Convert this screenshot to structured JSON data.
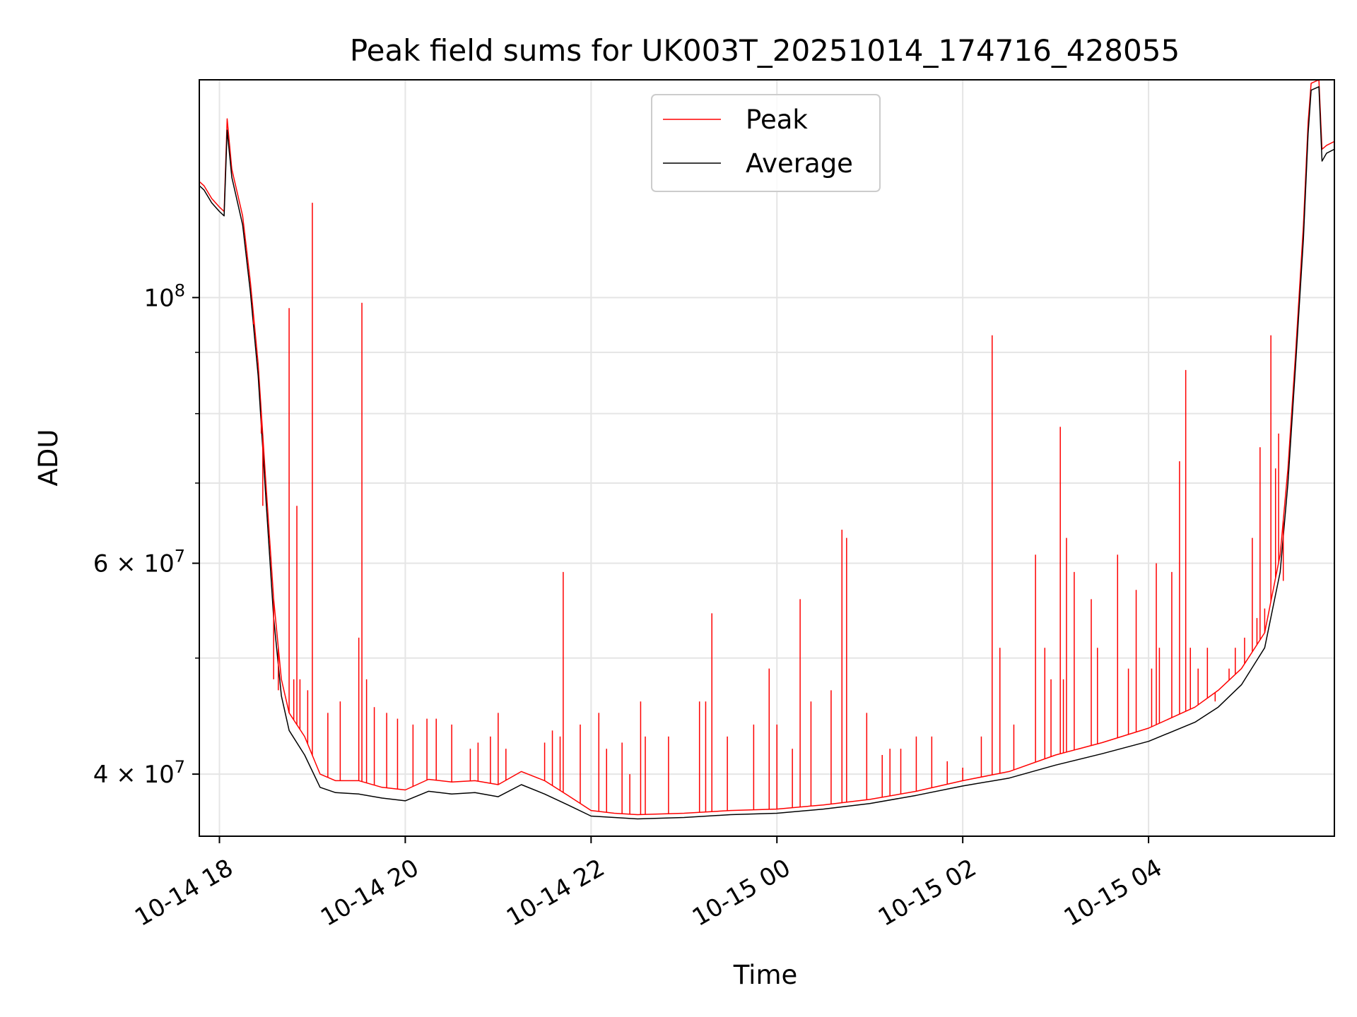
{
  "chart_data": {
    "type": "line",
    "title": "Peak field sums for UK003T_20251014_174716_428055",
    "xlabel": "Time",
    "ylabel": "ADU",
    "y_scale": "log",
    "grid": true,
    "legend_position": "top-center",
    "xlim": [
      "2025-10-14 17:47",
      "2025-10-15 06:00"
    ],
    "ylim": [
      35500000,
      152000000
    ],
    "x_ticks": [
      {
        "value": "2025-10-14 18:00",
        "label": "10-14 18"
      },
      {
        "value": "2025-10-14 20:00",
        "label": "10-14 20"
      },
      {
        "value": "2025-10-14 22:00",
        "label": "10-14 22"
      },
      {
        "value": "2025-10-15 00:00",
        "label": "10-15 00"
      },
      {
        "value": "2025-10-15 02:00",
        "label": "10-15 02"
      },
      {
        "value": "2025-10-15 04:00",
        "label": "10-15 04"
      }
    ],
    "y_ticks_major": [
      {
        "value": 100000000,
        "label_base": "10",
        "label_exp": "8"
      },
      {
        "value": 60000000,
        "label_base": "6 × 10",
        "label_exp": "7"
      },
      {
        "value": 40000000,
        "label_base": "4 × 10",
        "label_exp": "7"
      }
    ],
    "y_ticks_minor": [
      50000000,
      70000000,
      80000000,
      90000000
    ],
    "series": [
      {
        "name": "Peak",
        "color": "#ff0000",
        "points": [
          [
            "2025-10-14 17:47",
            125000000
          ],
          [
            "2025-10-14 17:50",
            124000000
          ],
          [
            "2025-10-14 17:55",
            121000000
          ],
          [
            "2025-10-14 18:00",
            119000000
          ],
          [
            "2025-10-14 18:03",
            118000000
          ],
          [
            "2025-10-14 18:05",
            141000000
          ],
          [
            "2025-10-14 18:08",
            128000000
          ],
          [
            "2025-10-14 18:15",
            117000000
          ],
          [
            "2025-10-14 18:20",
            103000000
          ],
          [
            "2025-10-14 18:25",
            88000000
          ],
          [
            "2025-10-14 18:30",
            70000000
          ],
          [
            "2025-10-14 18:35",
            56000000
          ],
          [
            "2025-10-14 18:40",
            48000000
          ],
          [
            "2025-10-14 18:45",
            45000000
          ],
          [
            "2025-10-14 18:55",
            43000000
          ],
          [
            "2025-10-14 19:05",
            40000000
          ],
          [
            "2025-10-14 19:15",
            39500000
          ],
          [
            "2025-10-14 19:30",
            39500000
          ],
          [
            "2025-10-14 19:45",
            39000000
          ],
          [
            "2025-10-14 20:00",
            38800000
          ],
          [
            "2025-10-14 20:15",
            39600000
          ],
          [
            "2025-10-14 20:30",
            39400000
          ],
          [
            "2025-10-14 20:45",
            39500000
          ],
          [
            "2025-10-14 21:00",
            39200000
          ],
          [
            "2025-10-14 21:15",
            40200000
          ],
          [
            "2025-10-14 21:30",
            39500000
          ],
          [
            "2025-10-14 21:45",
            38400000
          ],
          [
            "2025-10-14 22:00",
            37300000
          ],
          [
            "2025-10-14 22:15",
            37100000
          ],
          [
            "2025-10-14 22:30",
            37000000
          ],
          [
            "2025-10-14 23:00",
            37100000
          ],
          [
            "2025-10-14 23:30",
            37300000
          ],
          [
            "2025-10-15 00:00",
            37400000
          ],
          [
            "2025-10-15 00:30",
            37700000
          ],
          [
            "2025-10-15 01:00",
            38100000
          ],
          [
            "2025-10-15 01:30",
            38700000
          ],
          [
            "2025-10-15 02:00",
            39500000
          ],
          [
            "2025-10-15 02:30",
            40200000
          ],
          [
            "2025-10-15 03:00",
            41500000
          ],
          [
            "2025-10-15 03:30",
            42500000
          ],
          [
            "2025-10-15 04:00",
            43700000
          ],
          [
            "2025-10-15 04:30",
            45500000
          ],
          [
            "2025-10-15 04:45",
            47000000
          ],
          [
            "2025-10-15 05:00",
            49000000
          ],
          [
            "2025-10-15 05:15",
            52500000
          ],
          [
            "2025-10-15 05:25",
            61000000
          ],
          [
            "2025-10-15 05:30",
            72000000
          ],
          [
            "2025-10-15 05:35",
            90000000
          ],
          [
            "2025-10-15 05:40",
            115000000
          ],
          [
            "2025-10-15 05:43",
            140000000
          ],
          [
            "2025-10-15 05:45",
            151000000
          ],
          [
            "2025-10-15 05:50",
            152000000
          ],
          [
            "2025-10-15 05:52",
            133000000
          ],
          [
            "2025-10-15 05:55",
            134000000
          ],
          [
            "2025-10-15 06:00",
            135000000
          ]
        ]
      },
      {
        "name": "Average",
        "color": "#000000",
        "points": [
          [
            "2025-10-14 17:47",
            124000000
          ],
          [
            "2025-10-14 17:50",
            123000000
          ],
          [
            "2025-10-14 17:55",
            120000000
          ],
          [
            "2025-10-14 18:00",
            118000000
          ],
          [
            "2025-10-14 18:03",
            117000000
          ],
          [
            "2025-10-14 18:05",
            138000000
          ],
          [
            "2025-10-14 18:08",
            126000000
          ],
          [
            "2025-10-14 18:15",
            115000000
          ],
          [
            "2025-10-14 18:20",
            101000000
          ],
          [
            "2025-10-14 18:25",
            86000000
          ],
          [
            "2025-10-14 18:30",
            68000000
          ],
          [
            "2025-10-14 18:35",
            54000000
          ],
          [
            "2025-10-14 18:40",
            46500000
          ],
          [
            "2025-10-14 18:45",
            43500000
          ],
          [
            "2025-10-14 18:55",
            41500000
          ],
          [
            "2025-10-14 19:05",
            39000000
          ],
          [
            "2025-10-14 19:15",
            38600000
          ],
          [
            "2025-10-14 19:30",
            38500000
          ],
          [
            "2025-10-14 19:45",
            38200000
          ],
          [
            "2025-10-14 20:00",
            38000000
          ],
          [
            "2025-10-14 20:15",
            38700000
          ],
          [
            "2025-10-14 20:30",
            38500000
          ],
          [
            "2025-10-14 20:45",
            38600000
          ],
          [
            "2025-10-14 21:00",
            38300000
          ],
          [
            "2025-10-14 21:15",
            39200000
          ],
          [
            "2025-10-14 21:30",
            38500000
          ],
          [
            "2025-10-14 21:45",
            37700000
          ],
          [
            "2025-10-14 22:00",
            36900000
          ],
          [
            "2025-10-14 22:15",
            36800000
          ],
          [
            "2025-10-14 22:30",
            36700000
          ],
          [
            "2025-10-14 23:00",
            36800000
          ],
          [
            "2025-10-14 23:30",
            37000000
          ],
          [
            "2025-10-15 00:00",
            37100000
          ],
          [
            "2025-10-15 00:30",
            37400000
          ],
          [
            "2025-10-15 01:00",
            37800000
          ],
          [
            "2025-10-15 01:30",
            38400000
          ],
          [
            "2025-10-15 02:00",
            39100000
          ],
          [
            "2025-10-15 02:30",
            39700000
          ],
          [
            "2025-10-15 03:00",
            40700000
          ],
          [
            "2025-10-15 03:30",
            41600000
          ],
          [
            "2025-10-15 04:00",
            42600000
          ],
          [
            "2025-10-15 04:30",
            44200000
          ],
          [
            "2025-10-15 04:45",
            45500000
          ],
          [
            "2025-10-15 05:00",
            47500000
          ],
          [
            "2025-10-15 05:15",
            51000000
          ],
          [
            "2025-10-15 05:25",
            59000000
          ],
          [
            "2025-10-15 05:30",
            70000000
          ],
          [
            "2025-10-15 05:35",
            88000000
          ],
          [
            "2025-10-15 05:40",
            112000000
          ],
          [
            "2025-10-15 05:43",
            137000000
          ],
          [
            "2025-10-15 05:45",
            149000000
          ],
          [
            "2025-10-15 05:50",
            150000000
          ],
          [
            "2025-10-15 05:52",
            130000000
          ],
          [
            "2025-10-15 05:55",
            132000000
          ],
          [
            "2025-10-15 06:00",
            133000000
          ]
        ]
      }
    ],
    "peak_spikes": [
      [
        "2025-10-14 18:22",
        95000000
      ],
      [
        "2025-10-14 18:27",
        77000000
      ],
      [
        "2025-10-14 18:28",
        67000000
      ],
      [
        "2025-10-14 18:35",
        48000000
      ],
      [
        "2025-10-14 18:38",
        47000000
      ],
      [
        "2025-10-14 18:45",
        98000000
      ],
      [
        "2025-10-14 18:48",
        48000000
      ],
      [
        "2025-10-14 18:50",
        67000000
      ],
      [
        "2025-10-14 18:52",
        48000000
      ],
      [
        "2025-10-14 18:57",
        47000000
      ],
      [
        "2025-10-14 19:00",
        120000000
      ],
      [
        "2025-10-14 19:10",
        45000000
      ],
      [
        "2025-10-14 19:18",
        46000000
      ],
      [
        "2025-10-14 19:30",
        52000000
      ],
      [
        "2025-10-14 19:32",
        99000000
      ],
      [
        "2025-10-14 19:35",
        48000000
      ],
      [
        "2025-10-14 19:40",
        45500000
      ],
      [
        "2025-10-14 19:48",
        45000000
      ],
      [
        "2025-10-14 19:55",
        44500000
      ],
      [
        "2025-10-14 20:05",
        44000000
      ],
      [
        "2025-10-14 20:14",
        44500000
      ],
      [
        "2025-10-14 20:20",
        44500000
      ],
      [
        "2025-10-14 20:30",
        44000000
      ],
      [
        "2025-10-14 20:42",
        42000000
      ],
      [
        "2025-10-14 20:47",
        42500000
      ],
      [
        "2025-10-14 20:55",
        43000000
      ],
      [
        "2025-10-14 21:00",
        45000000
      ],
      [
        "2025-10-14 21:05",
        42000000
      ],
      [
        "2025-10-14 21:30",
        42500000
      ],
      [
        "2025-10-14 21:35",
        43500000
      ],
      [
        "2025-10-14 21:40",
        43000000
      ],
      [
        "2025-10-14 21:42",
        59000000
      ],
      [
        "2025-10-14 21:53",
        44000000
      ],
      [
        "2025-10-14 22:05",
        45000000
      ],
      [
        "2025-10-14 22:10",
        42000000
      ],
      [
        "2025-10-14 22:20",
        42500000
      ],
      [
        "2025-10-14 22:25",
        40000000
      ],
      [
        "2025-10-14 22:32",
        46000000
      ],
      [
        "2025-10-14 22:35",
        43000000
      ],
      [
        "2025-10-14 22:50",
        43000000
      ],
      [
        "2025-10-14 23:10",
        46000000
      ],
      [
        "2025-10-14 23:14",
        46000000
      ],
      [
        "2025-10-14 23:18",
        54500000
      ],
      [
        "2025-10-14 23:28",
        43000000
      ],
      [
        "2025-10-14 23:45",
        44000000
      ],
      [
        "2025-10-14 23:55",
        49000000
      ],
      [
        "2025-10-15 00:00",
        44000000
      ],
      [
        "2025-10-15 00:10",
        42000000
      ],
      [
        "2025-10-15 00:15",
        56000000
      ],
      [
        "2025-10-15 00:22",
        46000000
      ],
      [
        "2025-10-15 00:35",
        47000000
      ],
      [
        "2025-10-15 00:42",
        64000000
      ],
      [
        "2025-10-15 00:45",
        63000000
      ],
      [
        "2025-10-15 00:58",
        45000000
      ],
      [
        "2025-10-15 01:08",
        41500000
      ],
      [
        "2025-10-15 01:13",
        42000000
      ],
      [
        "2025-10-15 01:20",
        42000000
      ],
      [
        "2025-10-15 01:30",
        43000000
      ],
      [
        "2025-10-15 01:40",
        43000000
      ],
      [
        "2025-10-15 01:50",
        41000000
      ],
      [
        "2025-10-15 02:00",
        40500000
      ],
      [
        "2025-10-15 02:12",
        43000000
      ],
      [
        "2025-10-15 02:19",
        93000000
      ],
      [
        "2025-10-15 02:24",
        51000000
      ],
      [
        "2025-10-15 02:33",
        44000000
      ],
      [
        "2025-10-15 02:47",
        61000000
      ],
      [
        "2025-10-15 02:53",
        51000000
      ],
      [
        "2025-10-15 02:57",
        48000000
      ],
      [
        "2025-10-15 03:03",
        78000000
      ],
      [
        "2025-10-15 03:05",
        48000000
      ],
      [
        "2025-10-15 03:07",
        63000000
      ],
      [
        "2025-10-15 03:12",
        59000000
      ],
      [
        "2025-10-15 03:23",
        56000000
      ],
      [
        "2025-10-15 03:27",
        51000000
      ],
      [
        "2025-10-15 03:40",
        61000000
      ],
      [
        "2025-10-15 03:47",
        49000000
      ],
      [
        "2025-10-15 03:52",
        57000000
      ],
      [
        "2025-10-15 04:02",
        49000000
      ],
      [
        "2025-10-15 04:05",
        60000000
      ],
      [
        "2025-10-15 04:07",
        51000000
      ],
      [
        "2025-10-15 04:15",
        59000000
      ],
      [
        "2025-10-15 04:20",
        73000000
      ],
      [
        "2025-10-15 04:24",
        87000000
      ],
      [
        "2025-10-15 04:27",
        51000000
      ],
      [
        "2025-10-15 04:32",
        49000000
      ],
      [
        "2025-10-15 04:38",
        51000000
      ],
      [
        "2025-10-15 04:43",
        46000000
      ],
      [
        "2025-10-15 04:52",
        49000000
      ],
      [
        "2025-10-15 04:56",
        51000000
      ],
      [
        "2025-10-15 05:02",
        52000000
      ],
      [
        "2025-10-15 05:07",
        63000000
      ],
      [
        "2025-10-15 05:10",
        54000000
      ],
      [
        "2025-10-15 05:12",
        75000000
      ],
      [
        "2025-10-15 05:15",
        55000000
      ],
      [
        "2025-10-15 05:19",
        93000000
      ],
      [
        "2025-10-15 05:22",
        72000000
      ],
      [
        "2025-10-15 05:24",
        77000000
      ],
      [
        "2025-10-15 05:27",
        58000000
      ]
    ]
  }
}
